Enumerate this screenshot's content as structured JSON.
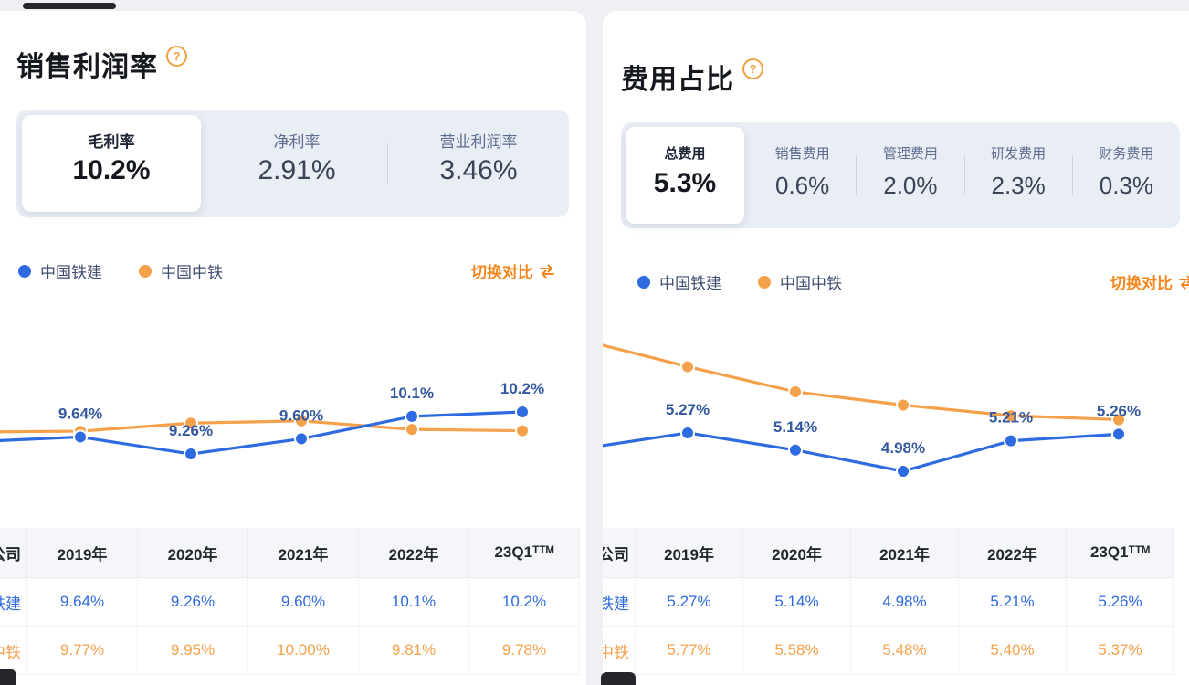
{
  "colors": {
    "accent_orange": "#f5861c",
    "blue_series": "#2e6ae0",
    "orange_series": "#f5a04a",
    "blue_label": "#33589f",
    "page_bg": "#eef0f3",
    "tabstrip_bg": "#e9edf4"
  },
  "left_panel": {
    "title": "销售利润率",
    "help": "?",
    "tabs": [
      {
        "label": "毛利率",
        "value": "10.2%",
        "selected": true
      },
      {
        "label": "净利率",
        "value": "2.91%",
        "selected": false
      },
      {
        "label": "营业利润率",
        "value": "3.46%",
        "selected": false
      }
    ],
    "legend_switch": "切换对比",
    "table_corner": "公司"
  },
  "right_panel": {
    "title": "费用占比",
    "help": "?",
    "tabs": [
      {
        "label": "总费用",
        "value": "5.3%",
        "selected": true
      },
      {
        "label": "销售费用",
        "value": "0.6%",
        "selected": false
      },
      {
        "label": "管理费用",
        "value": "2.0%",
        "selected": false
      },
      {
        "label": "研发费用",
        "value": "2.3%",
        "selected": false
      },
      {
        "label": "财务费用",
        "value": "0.3%",
        "selected": false
      }
    ],
    "legend_switch": "切换对比",
    "table_corner": "公司"
  },
  "chart_data": [
    {
      "type": "line",
      "title": "销售利润率（毛利率）",
      "categories": [
        "2019年",
        "2020年",
        "2021年",
        "2022年",
        "23Q1ᵀᵀᴹ"
      ],
      "series": [
        {
          "name": "中国铁建",
          "color": "#2e6ae0",
          "labeled": true,
          "values": [
            "9.64%",
            "9.26%",
            "9.60%",
            "10.1%",
            "10.2%"
          ]
        },
        {
          "name": "中国中铁",
          "color": "#f5a04a",
          "labeled": false,
          "values": [
            "9.77%",
            "9.95%",
            "10.00%",
            "9.81%",
            "9.78%"
          ]
        }
      ],
      "ylim": [
        9.0,
        10.5
      ],
      "grid": false,
      "legend_position": "top",
      "label_color": "#33589f"
    },
    {
      "type": "line",
      "title": "费用占比（总费用）",
      "categories": [
        "2019年",
        "2020年",
        "2021年",
        "2022年",
        "23Q1ᵀᵀᴹ"
      ],
      "series": [
        {
          "name": "中国铁建",
          "color": "#2e6ae0",
          "labeled": true,
          "values": [
            "5.27%",
            "5.14%",
            "4.98%",
            "5.21%",
            "5.26%"
          ]
        },
        {
          "name": "中国中铁",
          "color": "#f5a04a",
          "labeled": false,
          "values": [
            "5.77%",
            "5.58%",
            "5.48%",
            "5.40%",
            "5.37%"
          ]
        }
      ],
      "ylim": [
        4.8,
        6.0
      ],
      "grid": false,
      "legend_position": "top",
      "label_color": "#33589f"
    }
  ]
}
